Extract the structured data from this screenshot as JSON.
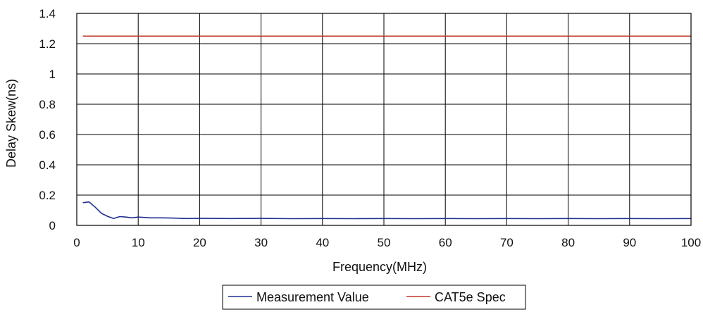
{
  "chart_data": {
    "type": "line",
    "title": "",
    "xlabel": "Frequency(MHz)",
    "ylabel": "Delay Skew(ns)",
    "xlim": [
      0,
      100
    ],
    "ylim": [
      0,
      1.4
    ],
    "x_ticks": [
      "0",
      "10",
      "20",
      "30",
      "40",
      "50",
      "60",
      "70",
      "80",
      "90",
      "100"
    ],
    "y_ticks": [
      "0",
      "0.2",
      "0.4",
      "0.6",
      "0.8",
      "1",
      "1.2",
      "1.4"
    ],
    "grid": true,
    "legend_position": "bottom",
    "series": [
      {
        "name": "Measurement Value",
        "color": "#1f2f8f",
        "x": [
          1,
          2,
          3,
          4,
          5,
          6,
          7,
          8,
          9,
          10,
          12,
          14,
          16,
          18,
          20,
          25,
          30,
          35,
          40,
          45,
          50,
          55,
          60,
          65,
          70,
          75,
          80,
          85,
          90,
          95,
          100
        ],
        "y": [
          0.15,
          0.155,
          0.12,
          0.08,
          0.06,
          0.045,
          0.058,
          0.055,
          0.05,
          0.055,
          0.05,
          0.05,
          0.048,
          0.045,
          0.047,
          0.045,
          0.046,
          0.044,
          0.045,
          0.044,
          0.045,
          0.044,
          0.045,
          0.044,
          0.045,
          0.044,
          0.045,
          0.044,
          0.045,
          0.044,
          0.045
        ]
      },
      {
        "name": "CAT5e Spec",
        "color": "#c0392b",
        "x": [
          1,
          100
        ],
        "y": [
          1.25,
          1.25
        ]
      }
    ]
  }
}
